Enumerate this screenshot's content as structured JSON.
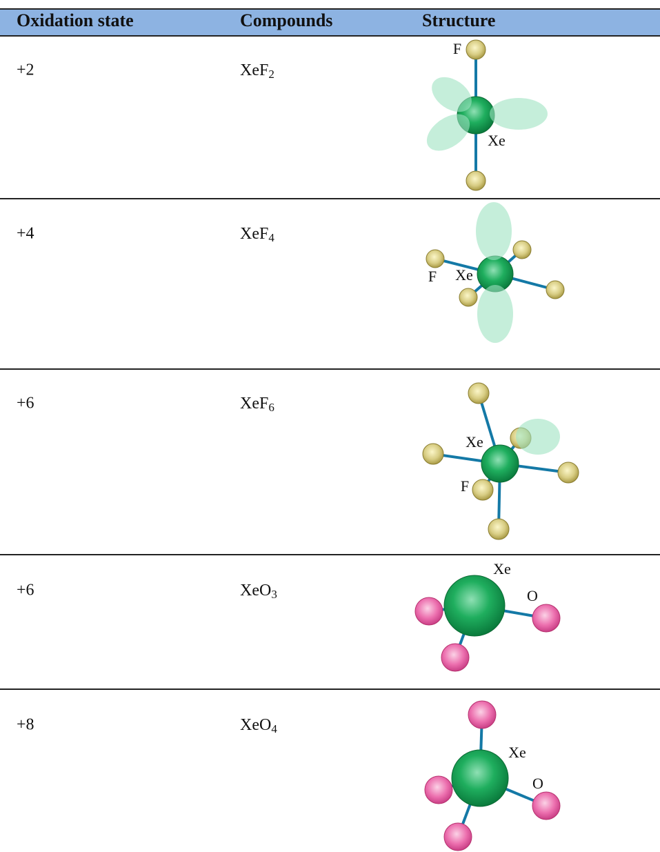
{
  "table": {
    "header": [
      "Oxidation state",
      "Compounds",
      "Structure"
    ],
    "rows": [
      {
        "oxidation_state": "+2",
        "compound": {
          "base": "XeF",
          "sub": "2"
        },
        "structure_labels": [
          "F",
          "Xe"
        ]
      },
      {
        "oxidation_state": "+4",
        "compound": {
          "base": "XeF",
          "sub": "4"
        },
        "structure_labels": [
          "F",
          "Xe"
        ]
      },
      {
        "oxidation_state": "+6",
        "compound": {
          "base": "XeF",
          "sub": "6"
        },
        "structure_labels": [
          "Xe",
          "F"
        ]
      },
      {
        "oxidation_state": "+6",
        "compound": {
          "base": "XeO",
          "sub": "3"
        },
        "structure_labels": [
          "Xe",
          "O"
        ]
      },
      {
        "oxidation_state": "+8",
        "compound": {
          "base": "XeO",
          "sub": "4"
        },
        "structure_labels": [
          "Xe",
          "O"
        ]
      }
    ]
  }
}
